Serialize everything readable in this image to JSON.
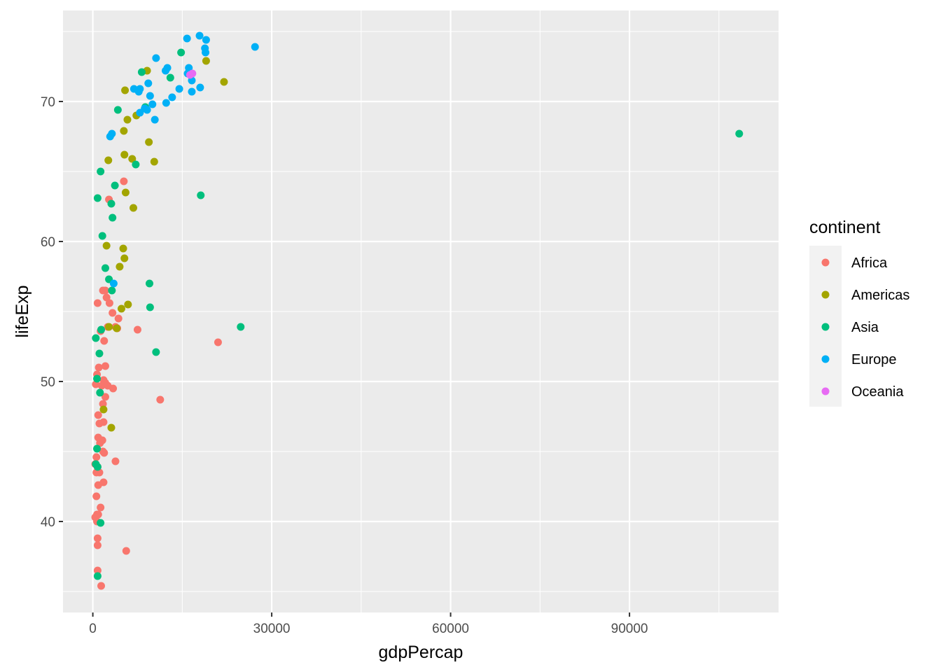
{
  "chart_data": {
    "type": "scatter",
    "title": "",
    "xlabel": "gdpPercap",
    "ylabel": "lifeExp",
    "xlim": [
      -5000,
      115000
    ],
    "ylim": [
      33.5,
      76.5
    ],
    "x_ticks": [
      0,
      30000,
      60000,
      90000
    ],
    "x_tick_labels": [
      "0",
      "30000",
      "60000",
      "90000"
    ],
    "y_ticks": [
      40,
      50,
      60,
      70
    ],
    "y_tick_labels": [
      "40",
      "50",
      "60",
      "70"
    ],
    "grid": true,
    "legend": {
      "title": "continent",
      "position": "right"
    },
    "series": [
      {
        "name": "Africa",
        "color": "#F8766D",
        "points": [
          [
            5200,
            64.3
          ],
          [
            2700,
            63.0
          ],
          [
            1700,
            56.5
          ],
          [
            2100,
            56.5
          ],
          [
            800,
            55.6
          ],
          [
            2300,
            56.0
          ],
          [
            2800,
            55.6
          ],
          [
            3300,
            54.9
          ],
          [
            4300,
            54.5
          ],
          [
            3800,
            53.9
          ],
          [
            4100,
            53.8
          ],
          [
            2500,
            53.9
          ],
          [
            1300,
            53.6
          ],
          [
            7500,
            53.7
          ],
          [
            1900,
            52.9
          ],
          [
            21000,
            52.8
          ],
          [
            2100,
            51.1
          ],
          [
            1000,
            51.0
          ],
          [
            700,
            50.5
          ],
          [
            1800,
            50.1
          ],
          [
            2100,
            49.9
          ],
          [
            500,
            49.8
          ],
          [
            1500,
            49.7
          ],
          [
            2500,
            49.7
          ],
          [
            3400,
            49.5
          ],
          [
            2100,
            48.9
          ],
          [
            11300,
            48.7
          ],
          [
            1700,
            48.4
          ],
          [
            900,
            47.6
          ],
          [
            1800,
            47.1
          ],
          [
            1100,
            47.0
          ],
          [
            900,
            46.0
          ],
          [
            1600,
            45.8
          ],
          [
            1200,
            45.6
          ],
          [
            1700,
            45.0
          ],
          [
            1900,
            44.9
          ],
          [
            600,
            44.6
          ],
          [
            3800,
            44.3
          ],
          [
            400,
            44.1
          ],
          [
            800,
            43.9
          ],
          [
            600,
            43.5
          ],
          [
            1100,
            43.5
          ],
          [
            900,
            42.6
          ],
          [
            1800,
            42.8
          ],
          [
            600,
            41.8
          ],
          [
            1300,
            41.0
          ],
          [
            700,
            40.5
          ],
          [
            900,
            40.5
          ],
          [
            400,
            40.3
          ],
          [
            700,
            40.0
          ],
          [
            800,
            38.8
          ],
          [
            800,
            38.3
          ],
          [
            5600,
            37.9
          ],
          [
            800,
            36.5
          ],
          [
            1400,
            35.4
          ]
        ]
      },
      {
        "name": "Americas",
        "color": "#A3A500",
        "points": [
          [
            9100,
            72.2
          ],
          [
            5400,
            70.8
          ],
          [
            19000,
            72.9
          ],
          [
            22000,
            71.4
          ],
          [
            5800,
            68.7
          ],
          [
            7300,
            69.0
          ],
          [
            5200,
            67.9
          ],
          [
            9400,
            67.1
          ],
          [
            5300,
            66.2
          ],
          [
            6600,
            65.9
          ],
          [
            2600,
            65.8
          ],
          [
            10300,
            65.7
          ],
          [
            5500,
            63.5
          ],
          [
            6800,
            62.4
          ],
          [
            2300,
            59.7
          ],
          [
            5100,
            59.5
          ],
          [
            5300,
            58.8
          ],
          [
            4500,
            58.2
          ],
          [
            5900,
            55.5
          ],
          [
            4800,
            55.2
          ],
          [
            2700,
            53.9
          ],
          [
            4000,
            53.8
          ],
          [
            1800,
            48.0
          ],
          [
            3100,
            46.7
          ]
        ]
      },
      {
        "name": "Asia",
        "color": "#00BF7D",
        "points": [
          [
            14800,
            73.5
          ],
          [
            13000,
            71.7
          ],
          [
            8200,
            72.1
          ],
          [
            4200,
            69.4
          ],
          [
            8800,
            69.6
          ],
          [
            7200,
            65.5
          ],
          [
            1300,
            65.0
          ],
          [
            3700,
            64.0
          ],
          [
            800,
            63.1
          ],
          [
            18100,
            63.3
          ],
          [
            3100,
            62.7
          ],
          [
            3300,
            61.7
          ],
          [
            1600,
            60.4
          ],
          [
            2100,
            58.1
          ],
          [
            2700,
            57.3
          ],
          [
            9500,
            57.0
          ],
          [
            3200,
            56.5
          ],
          [
            9600,
            55.3
          ],
          [
            24800,
            53.9
          ],
          [
            1400,
            53.7
          ],
          [
            500,
            53.1
          ],
          [
            10600,
            52.1
          ],
          [
            1100,
            52.0
          ],
          [
            700,
            50.2
          ],
          [
            1200,
            49.2
          ],
          [
            700,
            45.2
          ],
          [
            500,
            44.1
          ],
          [
            800,
            43.9
          ],
          [
            1300,
            39.9
          ],
          [
            800,
            36.1
          ],
          [
            108400,
            67.7
          ]
        ]
      },
      {
        "name": "Europe",
        "color": "#00B0F6",
        "points": [
          [
            17900,
            74.7
          ],
          [
            15800,
            74.5
          ],
          [
            19000,
            74.4
          ],
          [
            18800,
            73.8
          ],
          [
            18900,
            73.5
          ],
          [
            27200,
            73.9
          ],
          [
            10600,
            73.1
          ],
          [
            12500,
            72.4
          ],
          [
            16100,
            72.4
          ],
          [
            12200,
            72.2
          ],
          [
            15900,
            72.0
          ],
          [
            16600,
            71.5
          ],
          [
            9300,
            71.3
          ],
          [
            18000,
            71.0
          ],
          [
            14500,
            70.9
          ],
          [
            6900,
            70.9
          ],
          [
            7900,
            70.9
          ],
          [
            7700,
            70.7
          ],
          [
            16600,
            70.7
          ],
          [
            9600,
            70.4
          ],
          [
            13300,
            70.3
          ],
          [
            12300,
            69.9
          ],
          [
            10000,
            69.8
          ],
          [
            8700,
            69.5
          ],
          [
            9100,
            69.4
          ],
          [
            7900,
            69.2
          ],
          [
            10400,
            68.7
          ],
          [
            3200,
            67.7
          ],
          [
            2900,
            67.5
          ],
          [
            3500,
            57.0
          ]
        ]
      },
      {
        "name": "Oceania",
        "color": "#E76BF3",
        "points": [
          [
            16700,
            72.0
          ],
          [
            16300,
            71.9
          ]
        ]
      }
    ]
  }
}
